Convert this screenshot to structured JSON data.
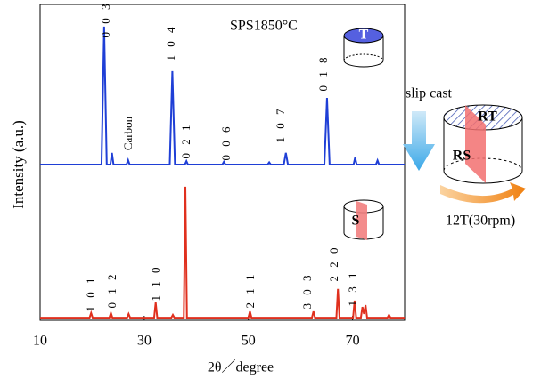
{
  "chart_data": {
    "type": "line",
    "title": "SPS1850°C",
    "x_label": "2θ／degree",
    "y_label": "Intensity (a.u.)",
    "xlim": [
      10,
      80
    ],
    "xticks": [
      10,
      30,
      50,
      70
    ],
    "ylim": [
      0,
      100
    ],
    "series": [
      {
        "name": "T",
        "color": "#1f3fd6",
        "x": [
          10,
          21.8,
          22.3,
          22.8,
          23.5,
          23.8,
          24.1,
          26.6,
          26.9,
          27.2,
          34.9,
          35.4,
          35.9,
          37.8,
          38.1,
          38.4,
          45,
          45.3,
          45.6,
          53.7,
          54,
          54.3,
          56.8,
          57.2,
          57.6,
          64.6,
          65.1,
          65.6,
          70.2,
          70.5,
          70.8,
          74.5,
          74.8,
          75.1,
          80
        ],
        "values": [
          49.3,
          49.3,
          93,
          49.3,
          49.3,
          53,
          49.3,
          49.3,
          50.7,
          49.3,
          49.3,
          78.9,
          49.3,
          49.3,
          50.4,
          49.3,
          49.3,
          50.2,
          49.3,
          49.3,
          50,
          49.3,
          49.3,
          53,
          49.3,
          49.3,
          70.4,
          49.3,
          49.3,
          51.5,
          49.3,
          49.3,
          50.6,
          49.3,
          49.3
        ]
      },
      {
        "name": "S",
        "color": "#e0301e",
        "x": [
          10,
          19.5,
          19.8,
          20.1,
          23.3,
          23.6,
          23.9,
          26.7,
          27,
          27.3,
          31.9,
          32.2,
          32.5,
          35.2,
          35.5,
          35.8,
          37.6,
          37.9,
          38.2,
          50,
          50.3,
          50.6,
          62.2,
          62.5,
          62.8,
          66.9,
          67.2,
          67.5,
          70.1,
          70.4,
          70.7,
          71.6,
          71.9,
          72.2,
          72.5,
          72.8,
          76.7,
          77,
          77.3,
          80
        ],
        "values": [
          0.8,
          0.8,
          2.3,
          0.8,
          0.8,
          2.3,
          0.8,
          0.8,
          2,
          0.8,
          0.8,
          5.6,
          0.8,
          0.8,
          1.7,
          0.8,
          0.8,
          42.3,
          0.8,
          0.8,
          2.8,
          0.8,
          0.8,
          2.8,
          0.8,
          0.8,
          9.9,
          0.8,
          0.8,
          6.2,
          0.8,
          0.8,
          4.2,
          2,
          4.8,
          0.8,
          0.8,
          1.7,
          0.8,
          0.8
        ]
      }
    ],
    "annotations": [
      "0 0 3",
      "Carbon",
      "1 0 4",
      "0 2 1",
      "0 0 6",
      "1 0 7",
      "0 1 8",
      "1 0 1",
      "0 1 2",
      "1 1 0",
      "2 1 1",
      "3 0 3",
      "2 2 0",
      "1 3 1"
    ],
    "diagram": {
      "process": "slip cast",
      "top_face": "RT",
      "side_face": "RS",
      "rotation": "12T(30rpm)"
    }
  }
}
